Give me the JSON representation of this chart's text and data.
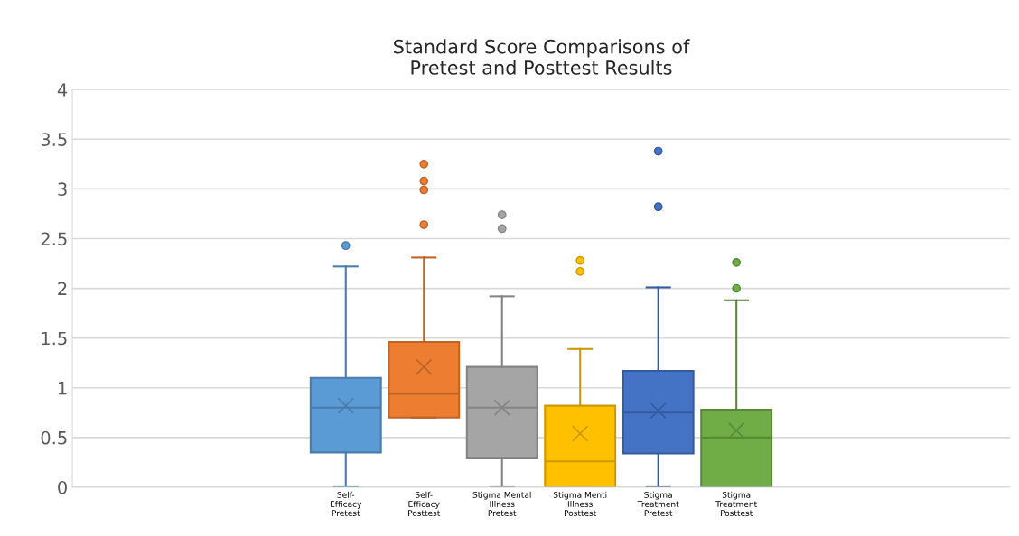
{
  "chart_data": {
    "type": "box",
    "title": "Standard Score Comparisons of\nPretest and Posttest Results",
    "categories": [
      null,
      null,
      null,
      "Self-\nEfficacy\nPretest",
      "Self-\nEfficacy\nPosttest",
      "Stigma Mental\nIllness\nPretest",
      "Stigma Menti\nIllness\nPosttest",
      "Stigma\nTreatment\nPretest",
      "Stigma\nTreatment\nPosttest",
      null,
      null,
      null
    ],
    "colors": [
      null,
      null,
      null,
      "#5b9bd5",
      "#ed7d31",
      "#a5a5a5",
      "#ffc000",
      "#4472c4",
      "#70ad47",
      null,
      null,
      null
    ],
    "boxes": [
      null,
      null,
      null,
      {
        "low": 0,
        "q1": 0.35,
        "median": 0.8,
        "q3": 1.1,
        "high": 2.22,
        "mean": 0.82,
        "outliers": [
          2.43
        ]
      },
      {
        "low": 0.7,
        "q1": 0.7,
        "median": 0.94,
        "q3": 1.46,
        "high": 2.31,
        "mean": 1.21,
        "outliers": [
          3.25,
          3.08,
          2.99,
          2.64
        ]
      },
      {
        "low": 0,
        "q1": 0.29,
        "median": 0.8,
        "q3": 1.21,
        "high": 1.92,
        "mean": 0.8,
        "outliers": [
          2.74,
          2.6
        ]
      },
      {
        "low": 0,
        "q1": 0,
        "median": 0.26,
        "q3": 0.82,
        "high": 1.39,
        "mean": 0.54,
        "outliers": [
          2.28,
          2.17
        ]
      },
      {
        "low": 0,
        "q1": 0.34,
        "median": 0.75,
        "q3": 1.17,
        "high": 2.01,
        "mean": 0.77,
        "outliers": [
          3.38,
          2.82
        ]
      },
      {
        "low": 0,
        "q1": 0,
        "median": 0.5,
        "q3": 0.78,
        "high": 1.88,
        "mean": 0.57,
        "outliers": [
          2.26,
          2.0
        ]
      },
      null,
      null,
      null
    ],
    "ylim": [
      0,
      4
    ],
    "yticks": [
      0,
      0.5,
      1,
      1.5,
      2,
      2.5,
      3,
      3.5,
      4
    ],
    "grid": "y",
    "marker": "circle"
  }
}
